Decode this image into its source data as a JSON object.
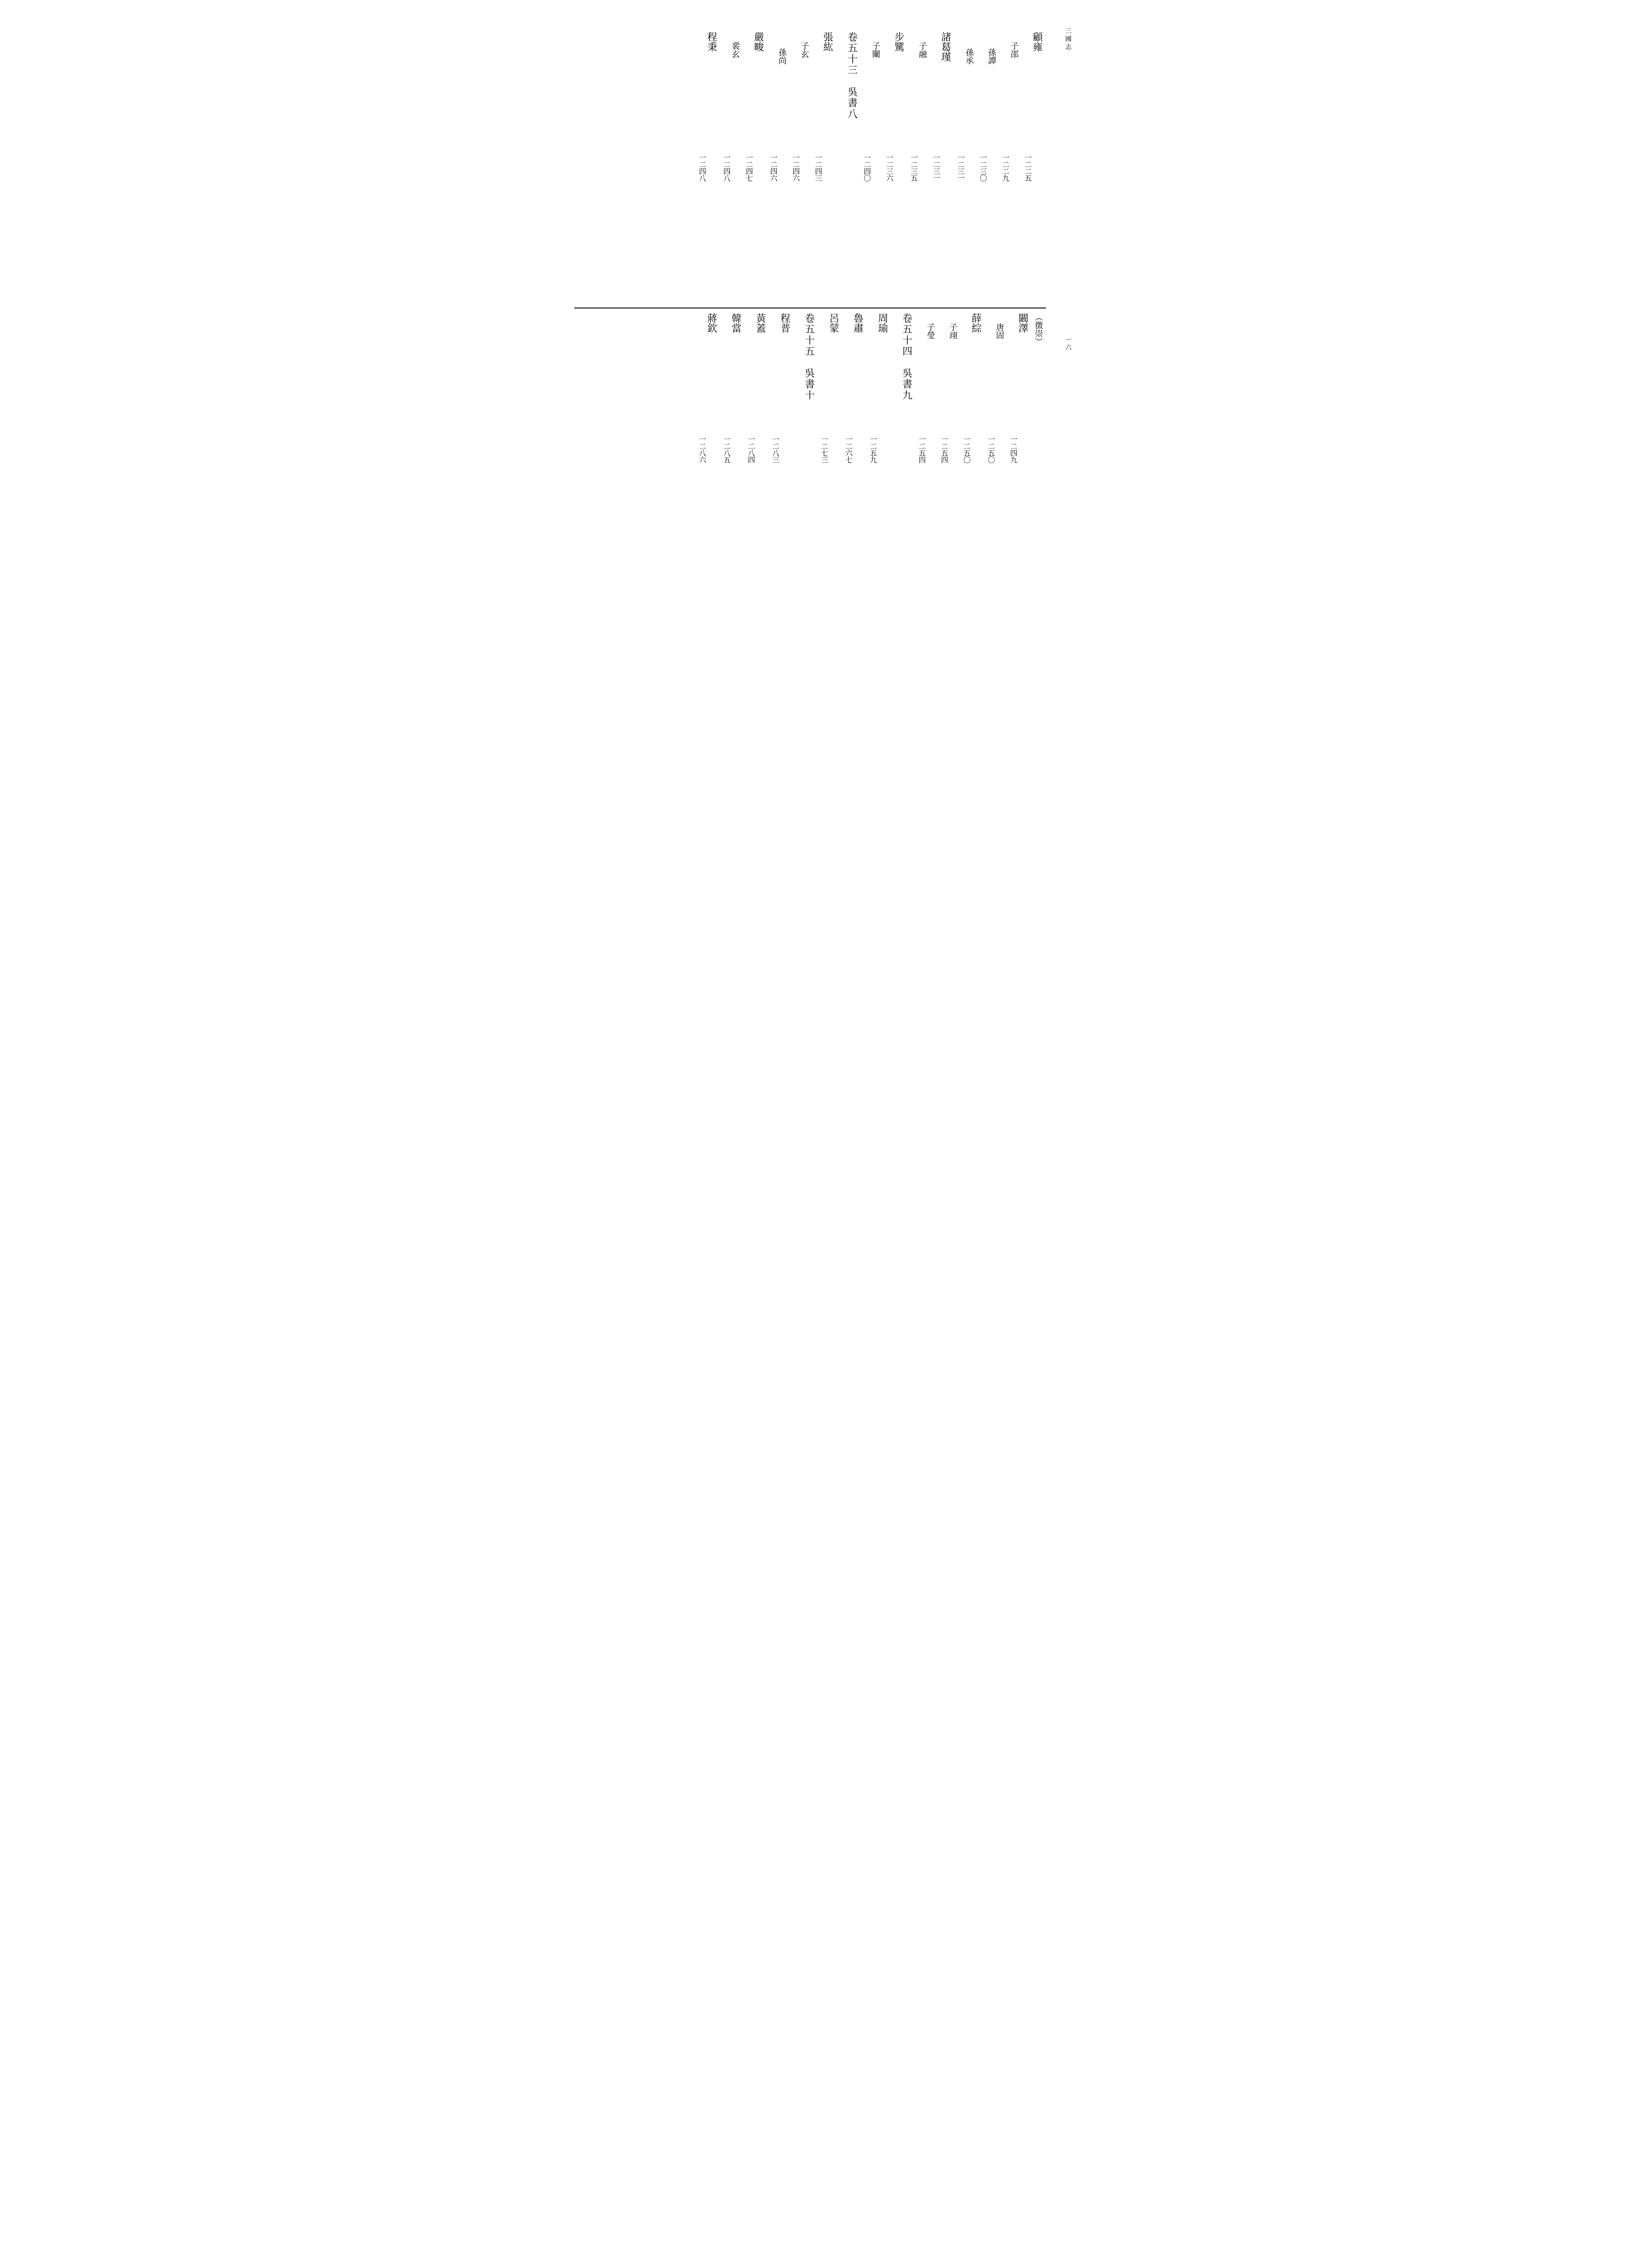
{
  "running_head": "三國志",
  "page_number": "一六",
  "upper_entries": [
    {
      "title": "顧雍",
      "page": "一二二五",
      "indent": 0
    },
    {
      "title": "子邵",
      "page": "一二二九",
      "indent": 1
    },
    {
      "title": "孫譚",
      "page": "一二三〇",
      "indent": 2
    },
    {
      "title": "孫承",
      "page": "一二三一",
      "indent": 2
    },
    {
      "title": "諸葛瑾",
      "page": "一二三一",
      "indent": 0
    },
    {
      "title": "子融",
      "page": "一二三五",
      "indent": 1
    },
    {
      "title": "步騭",
      "page": "一二三六",
      "indent": 0
    },
    {
      "title": "子闡",
      "page": "一二四〇",
      "indent": 1
    },
    {
      "title": "卷五十三　吳書八",
      "page": "",
      "indent": 0,
      "heading": true
    },
    {
      "title": "張紘",
      "page": "一二四三",
      "indent": 0
    },
    {
      "title": "子玄",
      "page": "一二四六",
      "indent": 1
    },
    {
      "title": "孫尚",
      "page": "一二四六",
      "indent": 2
    },
    {
      "title": "嚴畯",
      "page": "一二四七",
      "indent": 0
    },
    {
      "title": "裴玄",
      "page": "一二四八",
      "indent": 1
    },
    {
      "title": "程秉",
      "page": "一二四八",
      "indent": 0
    }
  ],
  "lower_entries": [
    {
      "title": "（徵崇）",
      "page": "",
      "indent": 0,
      "paren": true,
      "nopage": true
    },
    {
      "title": "闞澤",
      "page": "一二四九",
      "indent": 0
    },
    {
      "title": "唐固",
      "page": "一二五〇",
      "indent": 1
    },
    {
      "title": "薛綜",
      "page": "一二五〇",
      "indent": 0
    },
    {
      "title": "子翊",
      "page": "一二五四",
      "indent": 1
    },
    {
      "title": "子瑩",
      "page": "一二五四",
      "indent": 1
    },
    {
      "title": "卷五十四　吳書九",
      "page": "",
      "indent": 0,
      "heading": true
    },
    {
      "title": "周瑜",
      "page": "一二五九",
      "indent": 0
    },
    {
      "title": "魯肅",
      "page": "一二六七",
      "indent": 0
    },
    {
      "title": "呂蒙",
      "page": "一二七三",
      "indent": 0
    },
    {
      "title": "卷五十五　吳書十",
      "page": "",
      "indent": 0,
      "heading": true
    },
    {
      "title": "程普",
      "page": "一二八三",
      "indent": 0
    },
    {
      "title": "黃蓋",
      "page": "一二八四",
      "indent": 0
    },
    {
      "title": "韓當",
      "page": "一二八五",
      "indent": 0
    },
    {
      "title": "蔣欽",
      "page": "一二八六",
      "indent": 0
    }
  ]
}
